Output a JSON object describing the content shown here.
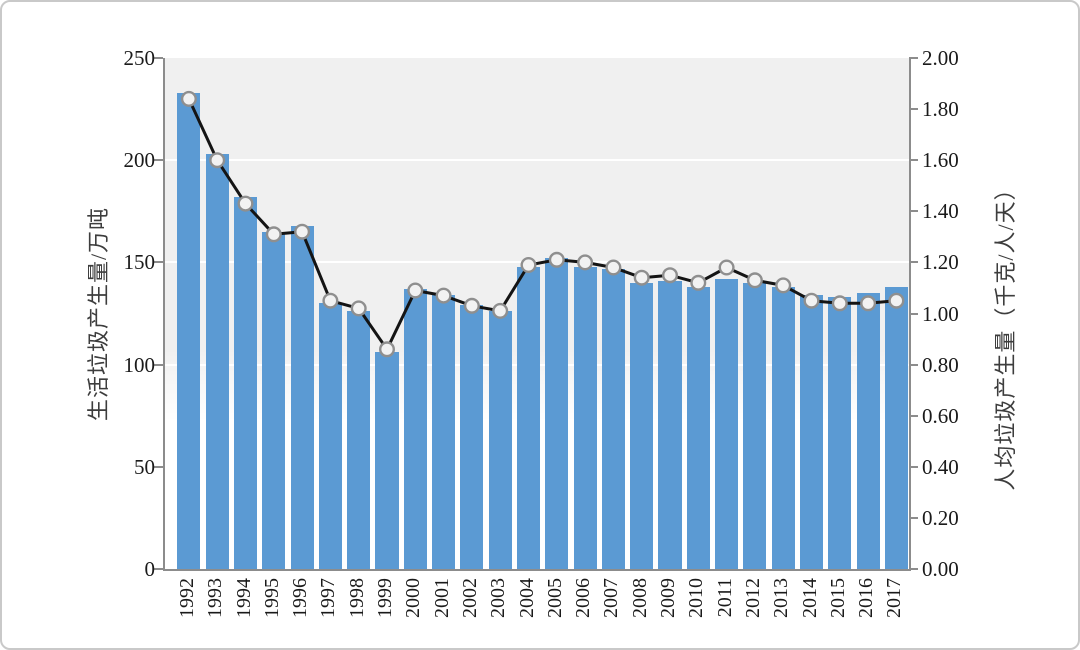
{
  "card": {
    "border_color": "#c9c9c9",
    "background": "#ffffff"
  },
  "chart_data": {
    "type": "bar",
    "title": "",
    "legend": "none",
    "grid": true,
    "plot_background": "#f0f0f0",
    "categories": [
      "1992",
      "1993",
      "1994",
      "1995",
      "1996",
      "1997",
      "1998",
      "1999",
      "2000",
      "2001",
      "2002",
      "2003",
      "2004",
      "2005",
      "2006",
      "2007",
      "2008",
      "2009",
      "2010",
      "2011",
      "2012",
      "2013",
      "2014",
      "2015",
      "2016",
      "2017"
    ],
    "series": [
      {
        "name": "生活垃圾产生量",
        "type": "bar",
        "axis": "left",
        "color": "#5b9ad3",
        "values": [
          233,
          203,
          182,
          165,
          168,
          130,
          126,
          106,
          137,
          134,
          129,
          126,
          148,
          152,
          148,
          147,
          140,
          141,
          138,
          142,
          140,
          138,
          134,
          133,
          135,
          138
        ]
      },
      {
        "name": "人均垃圾产生量",
        "type": "line",
        "axis": "right",
        "color": "#141414",
        "marker_fill": "#f2f2f2",
        "marker_stroke": "#8f8f8f",
        "values": [
          1.84,
          1.6,
          1.43,
          1.31,
          1.32,
          1.05,
          1.02,
          0.86,
          1.09,
          1.07,
          1.03,
          1.01,
          1.19,
          1.21,
          1.2,
          1.18,
          1.14,
          1.15,
          1.12,
          1.18,
          1.13,
          1.11,
          1.05,
          1.04,
          1.04,
          1.05
        ]
      }
    ],
    "left_axis": {
      "label": "生活垃圾产生量/万吨",
      "min": 0,
      "max": 250,
      "ticks": [
        "0",
        "50",
        "100",
        "150",
        "200",
        "250"
      ]
    },
    "right_axis": {
      "label": "人均垃圾产生量（千克/人/天）",
      "min": 0,
      "max": 2,
      "ticks": [
        "0.00",
        "0.20",
        "0.40",
        "0.60",
        "0.80",
        "1.00",
        "1.20",
        "1.40",
        "1.60",
        "1.80",
        "2.00"
      ]
    }
  }
}
